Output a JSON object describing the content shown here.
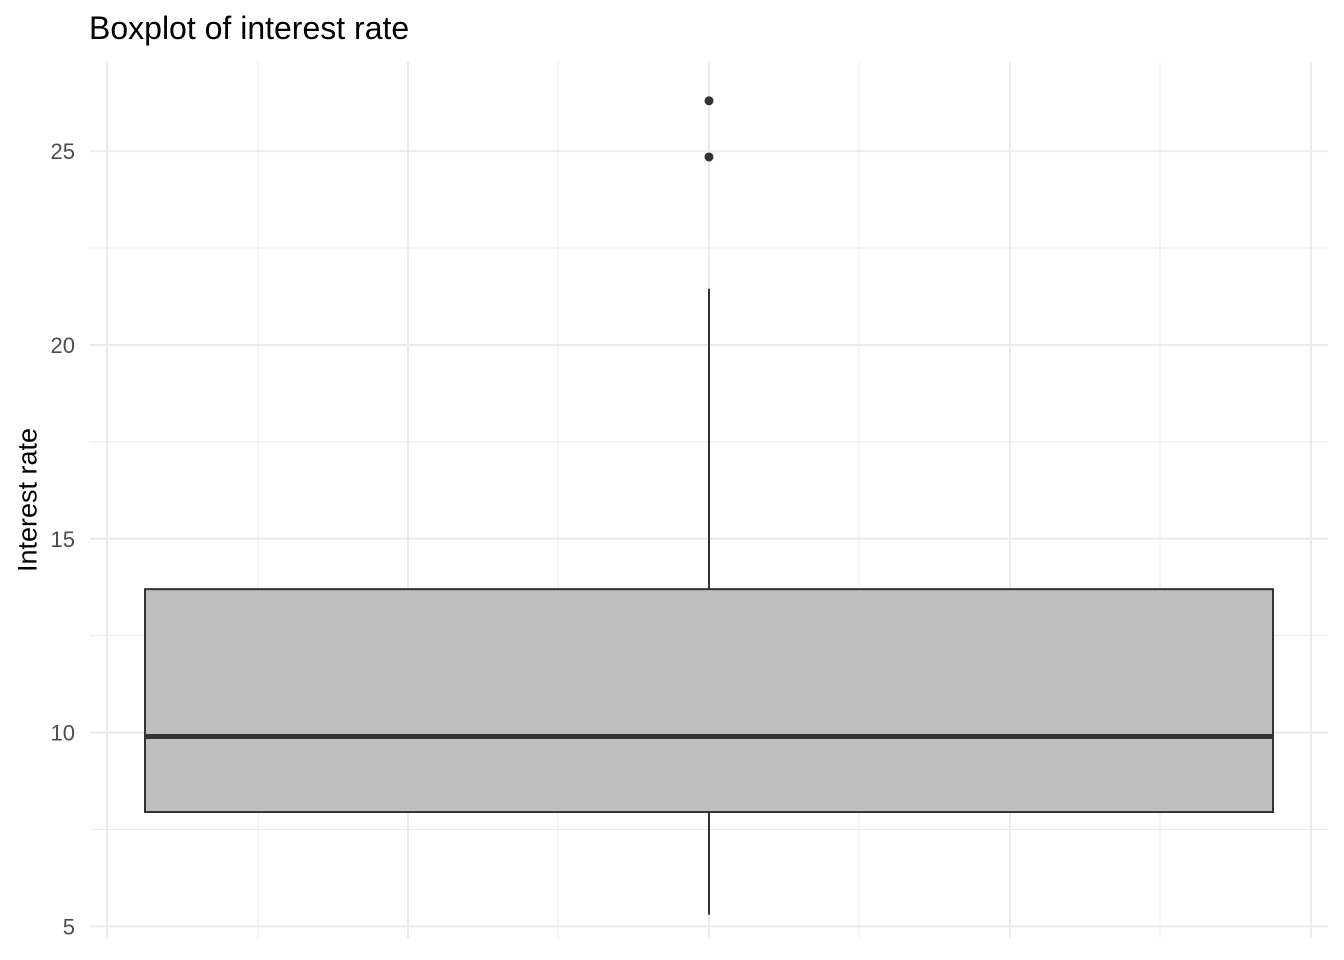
{
  "chart_data": {
    "type": "boxplot",
    "title": "Boxplot of interest rate",
    "xlabel": "",
    "ylabel": "Interest rate",
    "ylim": [
      4.7,
      27.3
    ],
    "y_ticks": [
      5,
      10,
      15,
      20,
      25
    ],
    "grid": true,
    "legend": "none",
    "box": {
      "min": 5.3,
      "q1": 7.95,
      "median": 9.9,
      "q3": 13.7,
      "max": 21.45,
      "outliers": [
        24.85,
        26.3
      ]
    },
    "colors": {
      "box_fill": "#bebebe",
      "line": "#333333",
      "grid": "#ebebeb",
      "tick_text": "#4d4d4d"
    }
  }
}
